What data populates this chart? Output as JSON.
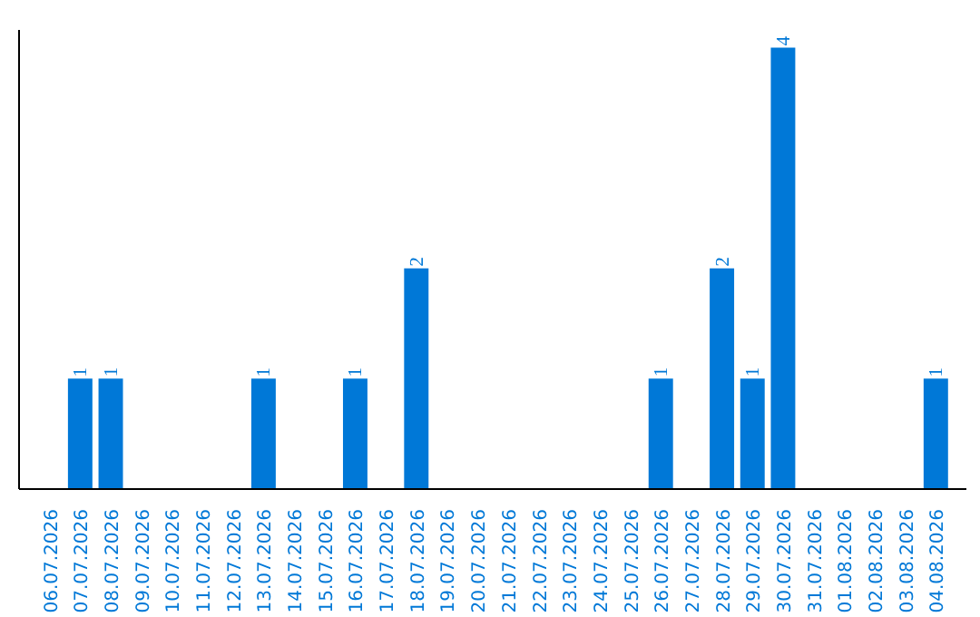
{
  "chart_data": {
    "type": "bar",
    "categories": [
      "06.07.2026",
      "07.07.2026",
      "08.07.2026",
      "09.07.2026",
      "10.07.2026",
      "11.07.2026",
      "12.07.2026",
      "13.07.2026",
      "14.07.2026",
      "15.07.2026",
      "16.07.2026",
      "17.07.2026",
      "18.07.2026",
      "19.07.2026",
      "20.07.2026",
      "21.07.2026",
      "22.07.2026",
      "23.07.2026",
      "24.07.2026",
      "25.07.2026",
      "26.07.2026",
      "27.07.2026",
      "28.07.2026",
      "29.07.2026",
      "30.07.2026",
      "31.07.2026",
      "01.08.2026",
      "02.08.2026",
      "03.08.2026",
      "04.08.2026"
    ],
    "values": [
      0,
      1,
      1,
      0,
      0,
      0,
      0,
      1,
      0,
      0,
      1,
      0,
      2,
      0,
      0,
      0,
      0,
      0,
      0,
      0,
      1,
      0,
      2,
      1,
      4,
      0,
      0,
      0,
      0,
      1
    ],
    "value_labels": [
      null,
      "1",
      "1",
      null,
      null,
      null,
      null,
      "1",
      null,
      null,
      "1",
      null,
      "2",
      null,
      null,
      null,
      null,
      null,
      null,
      null,
      "1",
      null,
      "2",
      "1",
      "4",
      null,
      null,
      null,
      null,
      "1"
    ],
    "color": "#0078d7",
    "grid": false,
    "tick_labels": "x"
  }
}
